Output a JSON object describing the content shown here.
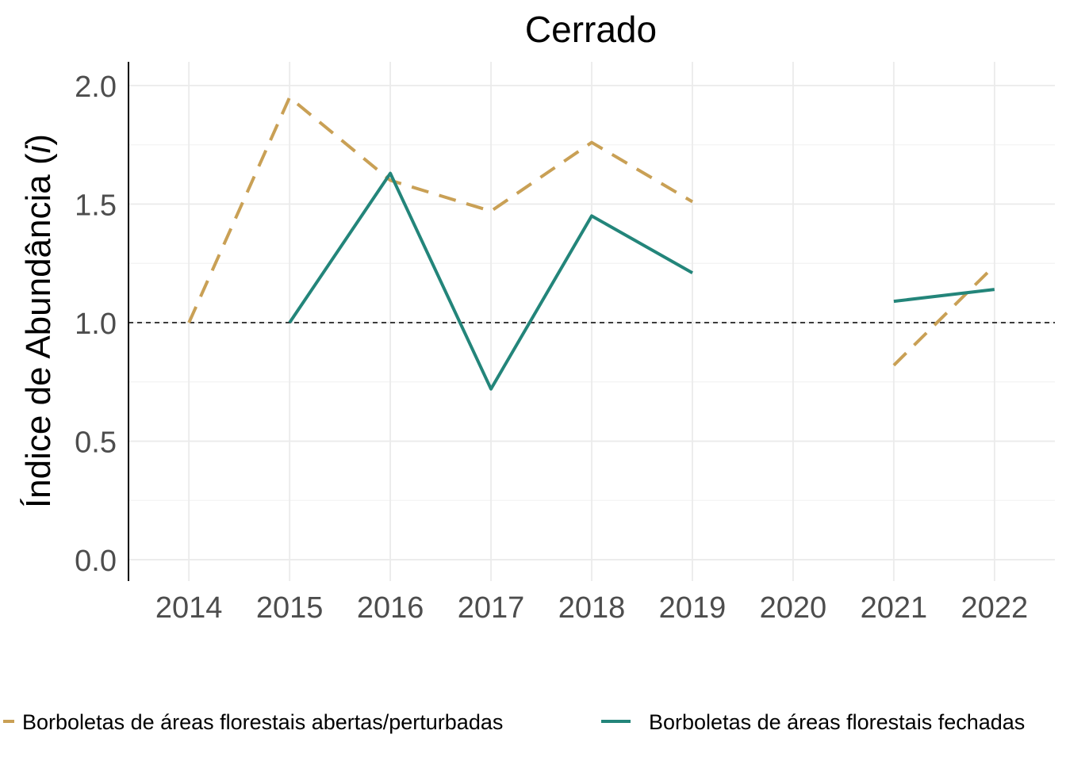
{
  "chart_data": {
    "type": "line",
    "title": "Cerrado",
    "ylabel_main": "Índice de Abundância (",
    "ylabel_italic": "i",
    "ylabel_end": ")",
    "xlabel": "",
    "x_categories": [
      "2014",
      "2015",
      "2016",
      "2017",
      "2018",
      "2019",
      "2020",
      "2021",
      "2022"
    ],
    "y_ticks": [
      "0.0",
      "0.5",
      "1.0",
      "1.5",
      "2.0"
    ],
    "ylim": [
      -0.09,
      2.1
    ],
    "reference_line": 1.0,
    "grid": true,
    "legend_position": "bottom",
    "series": [
      {
        "name": "Borboletas de áreas florestais abertas/perturbadas",
        "color": "#c9a055",
        "dash": "dashed",
        "segments": [
          [
            [
              2014,
              1.0
            ],
            [
              2015,
              1.95
            ],
            [
              2016,
              1.6
            ],
            [
              2017,
              1.47
            ],
            [
              2018,
              1.76
            ],
            [
              2019,
              1.51
            ]
          ],
          [
            [
              2021,
              0.82
            ],
            [
              2022,
              1.24
            ]
          ]
        ]
      },
      {
        "name": "Borboletas de áreas florestais fechadas",
        "color": "#23857a",
        "dash": "solid",
        "segments": [
          [
            [
              2015,
              1.0
            ],
            [
              2016,
              1.63
            ],
            [
              2017,
              0.72
            ],
            [
              2018,
              1.45
            ],
            [
              2019,
              1.21
            ]
          ],
          [
            [
              2021,
              1.09
            ],
            [
              2022,
              1.14
            ]
          ]
        ]
      }
    ]
  }
}
